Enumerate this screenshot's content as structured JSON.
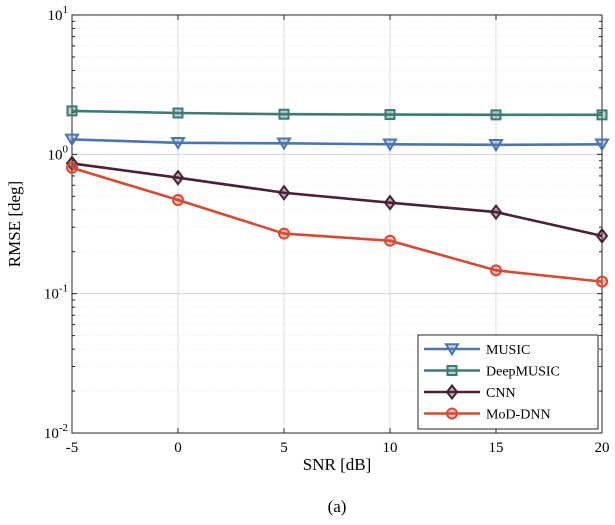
{
  "chart_data": {
    "type": "line",
    "caption": "(a)",
    "xlabel": "SNR [dB]",
    "ylabel": "RMSE [deg]",
    "x": [
      -5,
      0,
      5,
      10,
      15,
      20
    ],
    "xlim": [
      -5,
      20
    ],
    "ylim": [
      0.01,
      10
    ],
    "yscale": "log",
    "grid": true,
    "legend_position": "bottom-right",
    "x_ticks": [
      "-5",
      "0",
      "5",
      "10",
      "15",
      "20"
    ],
    "y_ticks": [
      {
        "value": 0.01,
        "base": "10",
        "exp": "-2"
      },
      {
        "value": 0.1,
        "base": "10",
        "exp": "-1"
      },
      {
        "value": 1,
        "base": "10",
        "exp": "0"
      },
      {
        "value": 10,
        "base": "10",
        "exp": "1"
      }
    ],
    "series": [
      {
        "name": "MUSIC",
        "color": "#4a75b0",
        "marker": "triangle-down",
        "values": [
          1.28,
          1.21,
          1.2,
          1.18,
          1.17,
          1.18
        ]
      },
      {
        "name": "DeepMUSIC",
        "color": "#3d7a75",
        "marker": "square",
        "values": [
          2.05,
          1.98,
          1.94,
          1.93,
          1.92,
          1.92
        ]
      },
      {
        "name": "CNN",
        "color": "#4a2238",
        "marker": "diamond",
        "values": [
          0.86,
          0.68,
          0.53,
          0.45,
          0.385,
          0.26
        ]
      },
      {
        "name": "MoD-DNN",
        "color": "#d84a32",
        "marker": "circle",
        "values": [
          0.8,
          0.47,
          0.27,
          0.24,
          0.147,
          0.122
        ]
      }
    ]
  }
}
